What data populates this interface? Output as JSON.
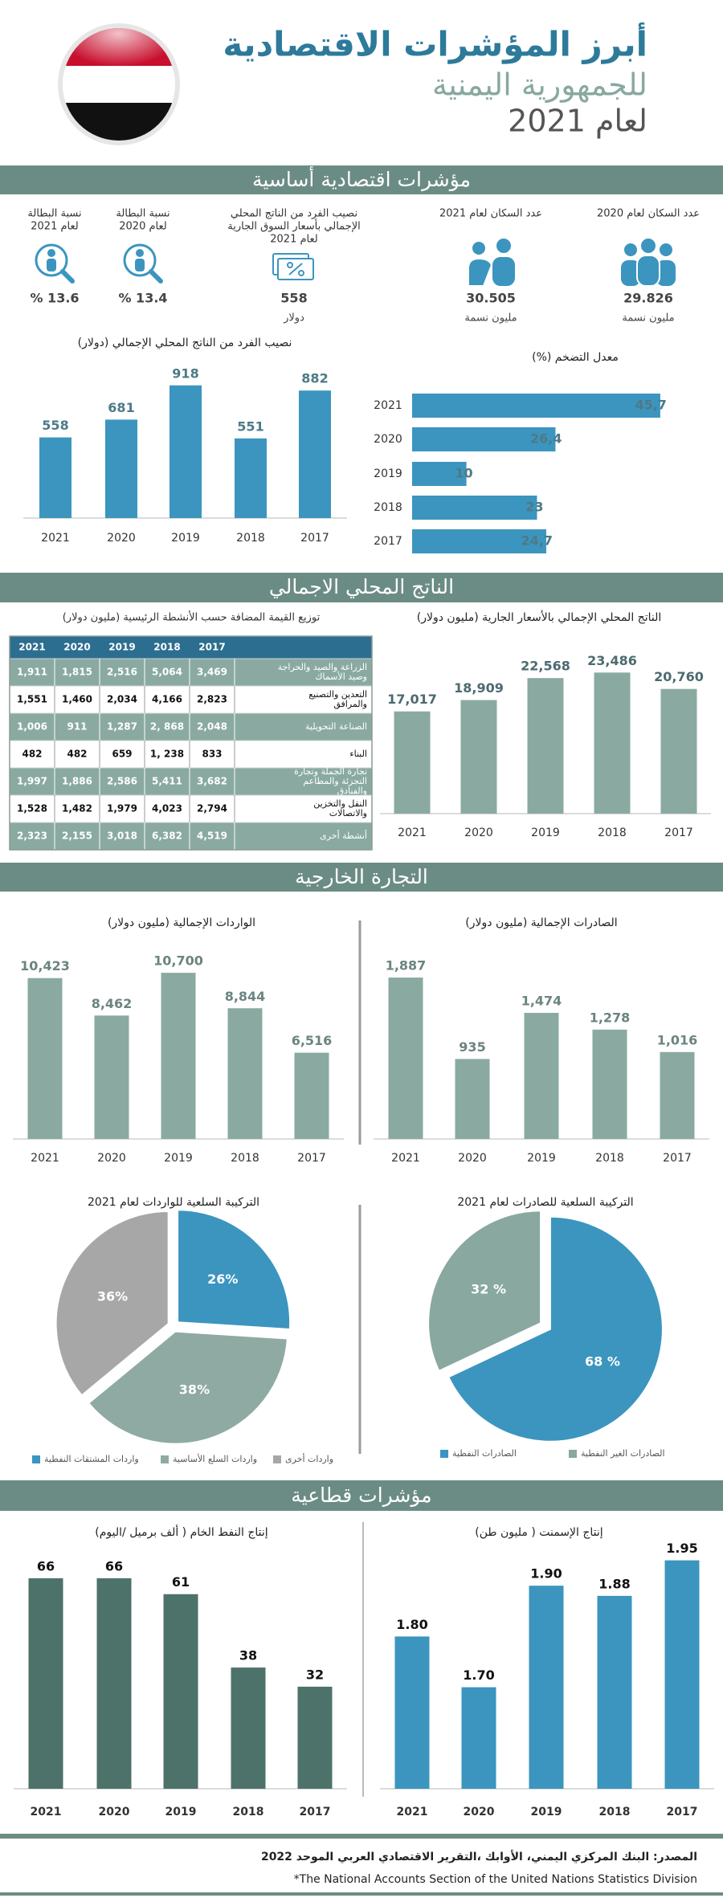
{
  "header": {
    "title": "أبرز المؤشرات الاقتصادية",
    "subtitle": "للجمهورية اليمنية",
    "year": "لعام 2021"
  },
  "sections": [
    "مؤشرات اقتصادية أساسية",
    "الناتج المحلي الاجمالي",
    "التجارة الخارجية",
    "مؤشرات قطاعية"
  ],
  "indicators": [
    {
      "label": [
        "عدد السكان لعام 2020"
      ],
      "value": "29.826",
      "unit": "مليون نسمة"
    },
    {
      "label": [
        "عدد السكان لعام 2021"
      ],
      "value": "30.505",
      "unit": "مليون نسمة"
    },
    {
      "label": [
        "نصيب الفرد من الناتج المحلي",
        "الإجمالي بأسعار السوق الجارية",
        "لعام 2021"
      ],
      "value": "558",
      "unit": "دولار"
    },
    {
      "label": [
        "نسبة البطالة",
        "لعام 2020"
      ],
      "value": "% 13.4"
    },
    {
      "label": [
        "نسبة البطالة",
        "لعام 2021"
      ],
      "value": "% 13.6"
    }
  ],
  "table": {
    "title": "توزيع القيمة المضافة حسب الأنشطة الرئيسية (مليون دولار)",
    "columns": [
      "2021",
      "2020",
      "2019",
      "2018",
      "2017"
    ],
    "rows": [
      {
        "label": [
          "الزراعة والصيد والحراجة",
          "وصيد الأسماك"
        ],
        "cells": [
          "1,911",
          "1,815",
          "2,516",
          "5,064",
          "3,469"
        ]
      },
      {
        "label": [
          "التعدين والتصنيع",
          "والمرافق"
        ],
        "cells": [
          "1,551",
          "1,460",
          "2,034",
          "4,166",
          "2,823"
        ]
      },
      {
        "label": [
          "الصناعة التحويلية"
        ],
        "cells": [
          "1,006",
          "911",
          "1,287",
          "2, 868",
          "2,048"
        ]
      },
      {
        "label": [
          "البناء"
        ],
        "cells": [
          "482",
          "482",
          "659",
          "1, 238",
          "833"
        ]
      },
      {
        "label": [
          "تجارة الجملة وتجارة",
          "التجزئة والمطاعم",
          "والفنادق"
        ],
        "cells": [
          "1,997",
          "1,886",
          "2,586",
          "5,411",
          "3,682"
        ]
      },
      {
        "label": [
          "النقل والتخزين",
          "والاتصالات"
        ],
        "cells": [
          "1,528",
          "1,482",
          "1,979",
          "4,023",
          "2,794"
        ]
      },
      {
        "label": [
          "أنشطة أخرى"
        ],
        "cells": [
          "2,323",
          "2,155",
          "3,018",
          "6,382",
          "4,519"
        ]
      }
    ]
  },
  "chart_data": [
    {
      "type": "bar",
      "title": "نصيب الفرد من الناتج المحلي الإجمالي (دولار)",
      "categories": [
        "2021",
        "2020",
        "2019",
        "2018",
        "2017"
      ],
      "values": [
        558,
        681,
        918,
        551,
        882
      ],
      "color": "#3b95bf",
      "ylim": [
        0,
        1000
      ]
    },
    {
      "type": "barh",
      "title": "معدل التضخم (%)",
      "categories": [
        "2021",
        "2020",
        "2019",
        "2018",
        "2017"
      ],
      "values": [
        45.7,
        26.4,
        10,
        23,
        24.7
      ],
      "value_labels": [
        "45,7",
        "26,4",
        "10",
        "23",
        "24,7"
      ],
      "color": "#3b95bf",
      "xlim": [
        0,
        50
      ]
    },
    {
      "type": "bar",
      "title": "الناتج المحلي الإجمالي بالأسعار الجارية (مليون دولار)",
      "categories": [
        "2021",
        "2020",
        "2019",
        "2018",
        "2017"
      ],
      "values": [
        17017,
        18909,
        22568,
        23486,
        20760
      ],
      "value_labels": [
        "17,017",
        "18,909",
        "22,568",
        "23,486",
        "20,760"
      ],
      "color": "#8aaaa1",
      "ylim": [
        0,
        25000
      ]
    },
    {
      "type": "bar",
      "title": "الواردات الإجمالية (مليون دولار)",
      "categories": [
        "2021",
        "2020",
        "2019",
        "2018",
        "2017"
      ],
      "values": [
        10423,
        8462,
        10700,
        8844,
        6516
      ],
      "value_labels": [
        "10,423",
        "8,462",
        "10,700",
        "8,844",
        "6,516"
      ],
      "color": "#8aaaa1",
      "ylim": [
        2000,
        11000
      ]
    },
    {
      "type": "bar",
      "title": "الصادرات الإجمالية (مليون دولار)",
      "categories": [
        "2021",
        "2020",
        "2019",
        "2018",
        "2017"
      ],
      "values": [
        1887,
        935,
        1474,
        1278,
        1016
      ],
      "value_labels": [
        "1,887",
        "935",
        "1,474",
        "1,278",
        "1,016"
      ],
      "color": "#8aaaa1",
      "ylim": [
        0,
        2000
      ]
    },
    {
      "type": "pie",
      "title": "التركيبة السلعية للواردات لعام 2021",
      "categories": [
        "واردات المشتقات النفطية",
        "واردات السلع الأساسية",
        "واردات أخرى"
      ],
      "values": [
        26,
        38,
        36
      ],
      "value_labels": [
        "26%",
        "38%",
        "36%"
      ],
      "colors": [
        "#3b95bf",
        "#8faaa2",
        "#a7a7a7"
      ]
    },
    {
      "type": "pie",
      "title": "التركيبة السلعية للصادرات لعام 2021",
      "categories": [
        "الصادرات النفطية",
        "الصادرات الغير النفطية"
      ],
      "values": [
        68,
        32
      ],
      "value_labels": [
        "68 %",
        "32 %"
      ],
      "colors": [
        "#3b95bf",
        "#88a8a0"
      ]
    },
    {
      "type": "bar",
      "title": "إنتاج النفط الخام ( ألف برميل /اليوم)",
      "categories": [
        "2021",
        "2020",
        "2019",
        "2018",
        "2017"
      ],
      "values": [
        66,
        66,
        61,
        38,
        32
      ],
      "color": "#4d7269",
      "ylim": [
        0,
        70
      ]
    },
    {
      "type": "bar",
      "title": "إنتاج الإسمنت ( مليون طن)",
      "categories": [
        "2021",
        "2020",
        "2019",
        "2018",
        "2017"
      ],
      "values": [
        1.8,
        1.7,
        1.9,
        1.88,
        1.95
      ],
      "value_labels": [
        "1.80",
        "1.70",
        "1.90",
        "1.88",
        "1.95"
      ],
      "color": "#3b95bf",
      "ylim": [
        1.5,
        2
      ]
    }
  ],
  "source": {
    "line1": "المصدر:  البنك المركزي اليمني، الأوابك ،التقرير الاقتصادي العربي الموحد 2022",
    "line2": "*The National Accounts Section of the United Nations Statistics Division"
  }
}
